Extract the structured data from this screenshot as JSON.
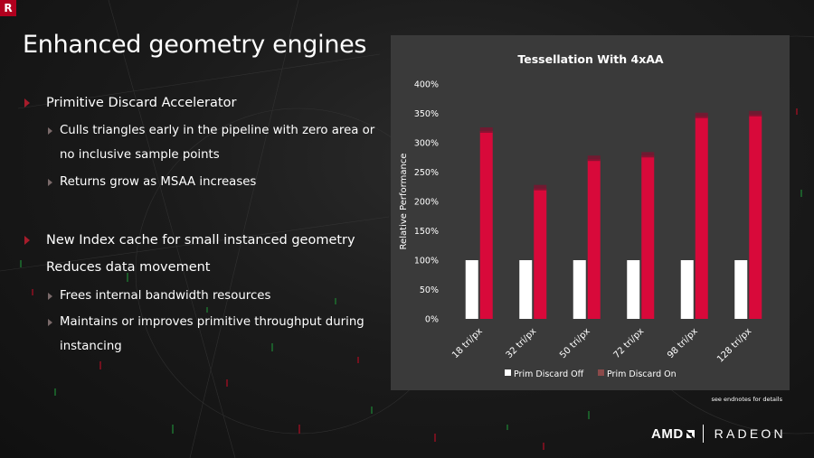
{
  "slide": {
    "corner_logo": "R",
    "title": "Enhanced geometry engines",
    "endnote": "see endnotes for details"
  },
  "bullets": [
    {
      "level": 1,
      "text": "Primitive Discard Accelerator"
    },
    {
      "level": 2,
      "text": "Culls triangles early in the pipeline with zero area or"
    },
    {
      "level": 2,
      "text": "no inclusive sample points"
    },
    {
      "level": 2,
      "text": "Returns grow as MSAA increases"
    },
    {
      "level": 1,
      "text": "New Index cache for small instanced geometry"
    },
    {
      "level": 1,
      "text": "Reduces data movement"
    },
    {
      "level": 2,
      "text": "Frees internal bandwidth resources"
    },
    {
      "level": 2,
      "text": "Maintains or  improves primitive throughput during"
    },
    {
      "level": 2,
      "text": "instancing"
    }
  ],
  "chart_data": {
    "type": "bar",
    "title": "Tessellation With 4xAA",
    "xlabel": "",
    "ylabel": "Relative Performance",
    "ylim": [
      0,
      400
    ],
    "y_ticks": [
      "0%",
      "50%",
      "100%",
      "150%",
      "200%",
      "250%",
      "300%",
      "350%",
      "400%"
    ],
    "grid": false,
    "legend_position": "bottom",
    "categories": [
      "18 tri/px",
      "32 tri/px",
      "50 tri/px",
      "72 tri/px",
      "98 tri/px",
      "128 tri/px"
    ],
    "series": [
      {
        "name": "Prim Discard Off",
        "color": "#ffffff",
        "values": [
          100,
          100,
          100,
          100,
          100,
          100
        ]
      },
      {
        "name": "Prim Discard On",
        "color": "#d8093a",
        "values": [
          320,
          222,
          272,
          278,
          345,
          348
        ]
      }
    ]
  },
  "footer": {
    "brand_amd": "AMD",
    "brand_radeon": "RADEON"
  },
  "colors": {
    "accent": "#a61c2b",
    "chart_bg": "#3a3a3a",
    "bar_on": "#d8093a",
    "bar_off": "#ffffff"
  }
}
